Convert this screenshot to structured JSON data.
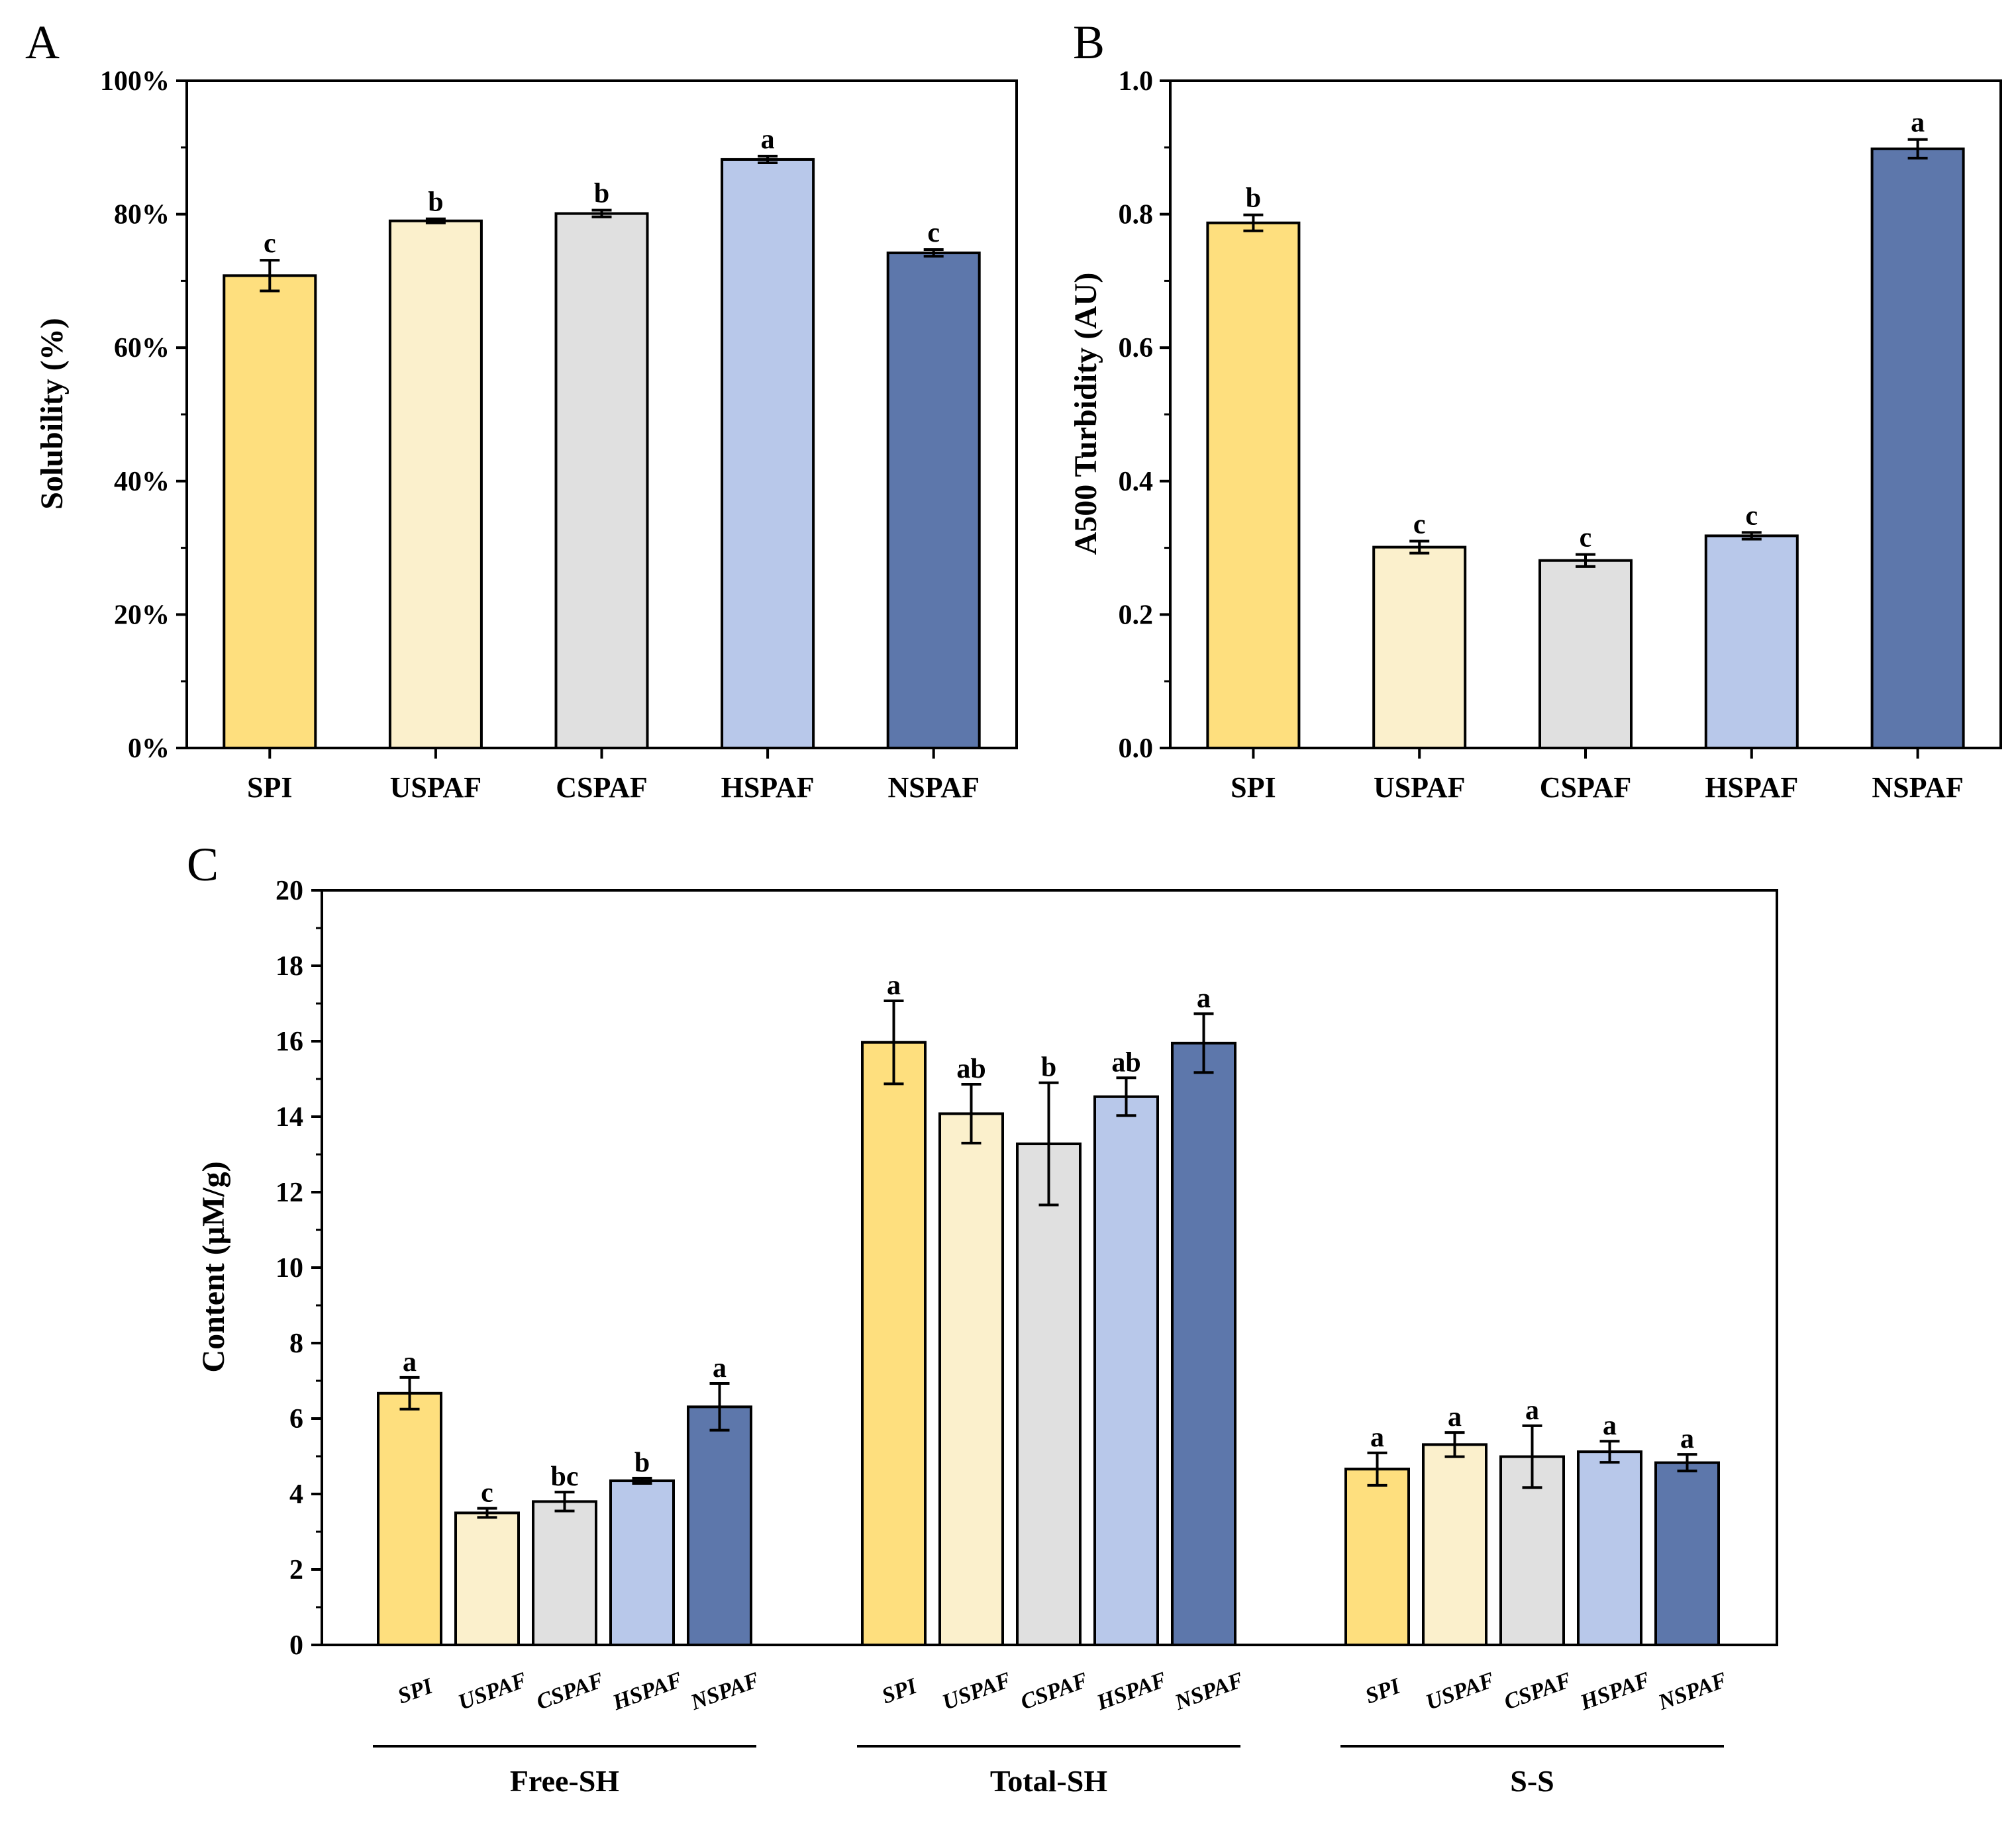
{
  "chart_data": [
    {
      "panel": "A",
      "type": "bar",
      "title": "",
      "xlabel": "",
      "ylabel": "Solubility (%)",
      "ylim": [
        0,
        100
      ],
      "yticks": [
        "0%",
        "20%",
        "40%",
        "60%",
        "80%",
        "100%"
      ],
      "categories": [
        "SPI",
        "USPAF",
        "CSPAF",
        "HSPAF",
        "NSPAF"
      ],
      "values": [
        70.8,
        79.0,
        80.1,
        88.2,
        74.2
      ],
      "errors": [
        2.3,
        0.3,
        0.5,
        0.5,
        0.5
      ],
      "significance": [
        "c",
        "b",
        "b",
        "a",
        "c"
      ],
      "colors": [
        "#fedf7e",
        "#fbf0cc",
        "#e0e0e0",
        "#b8c8ea",
        "#5d77ab"
      ]
    },
    {
      "panel": "B",
      "type": "bar",
      "title": "",
      "xlabel": "",
      "ylabel": "A500 Turbidity (AU)",
      "ylim": [
        0,
        1
      ],
      "yticks": [
        "0.0",
        "0.2",
        "0.4",
        "0.6",
        "0.8",
        "1.0"
      ],
      "categories": [
        "SPI",
        "USPAF",
        "CSPAF",
        "HSPAF",
        "NSPAF"
      ],
      "values": [
        0.787,
        0.301,
        0.281,
        0.318,
        0.898
      ],
      "errors": [
        0.012,
        0.009,
        0.009,
        0.005,
        0.014
      ],
      "significance": [
        "b",
        "c",
        "c",
        "c",
        "a"
      ],
      "colors": [
        "#fedf7e",
        "#fbf0cc",
        "#e0e0e0",
        "#b8c8ea",
        "#5d77ab"
      ]
    },
    {
      "panel": "C",
      "type": "bar",
      "title": "",
      "xlabel": "",
      "ylabel": "Content (μM/g)",
      "ylim": [
        0,
        20
      ],
      "yticks": [
        "0",
        "2",
        "4",
        "6",
        "8",
        "10",
        "12",
        "14",
        "16",
        "18",
        "20"
      ],
      "categories": [
        "SPI",
        "USPAF",
        "CSPAF",
        "HSPAF",
        "NSPAF"
      ],
      "groups": [
        {
          "name": "Free-SH",
          "values": [
            6.67,
            3.5,
            3.8,
            4.35,
            6.31
          ],
          "errors": [
            0.42,
            0.12,
            0.25,
            0.07,
            0.62
          ],
          "significance": [
            "a",
            "c",
            "bc",
            "b",
            "a"
          ]
        },
        {
          "name": "Total-SH",
          "values": [
            15.97,
            14.08,
            13.28,
            14.53,
            15.95
          ],
          "errors": [
            1.1,
            0.78,
            1.62,
            0.5,
            0.78
          ],
          "significance": [
            "a",
            "ab",
            "b",
            "ab",
            "a"
          ]
        },
        {
          "name": "S-S",
          "values": [
            4.66,
            5.31,
            4.99,
            5.12,
            4.83
          ],
          "errors": [
            0.43,
            0.32,
            0.82,
            0.28,
            0.22
          ],
          "significance": [
            "a",
            "a",
            "a",
            "a",
            "a"
          ]
        }
      ],
      "colors": [
        "#fedf7e",
        "#fbf0cc",
        "#e0e0e0",
        "#b8c8ea",
        "#5d77ab"
      ]
    }
  ]
}
